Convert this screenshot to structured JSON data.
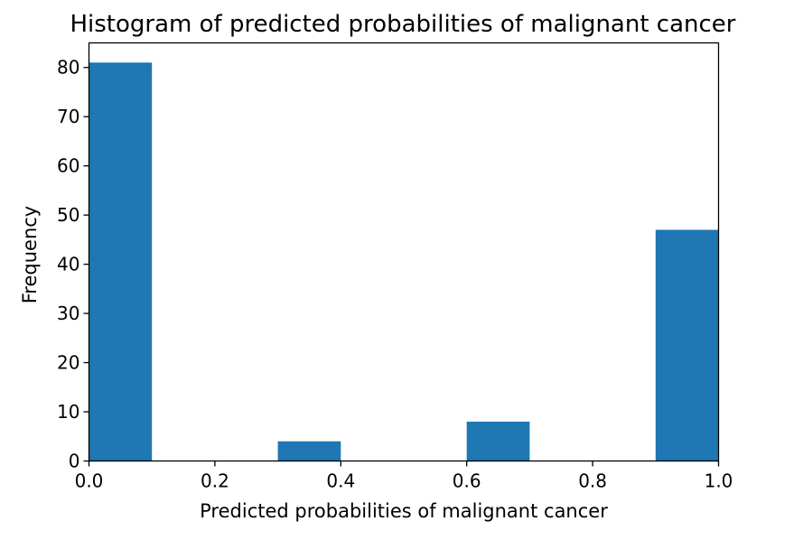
{
  "chart_data": {
    "type": "bar",
    "title": "Histogram of predicted probabilities of malignant cancer",
    "xlabel": "Predicted probabilities of malignant cancer",
    "ylabel": "Frequency",
    "bin_edges": [
      0.0,
      0.1,
      0.2,
      0.3,
      0.4,
      0.5,
      0.6,
      0.7,
      0.8,
      0.9,
      1.0
    ],
    "values": [
      81,
      0,
      0,
      4,
      0,
      0,
      8,
      0,
      0,
      47
    ],
    "xlim": [
      0.0,
      1.0
    ],
    "ylim": [
      0,
      85
    ],
    "xticks": [
      "0.0",
      "0.2",
      "0.4",
      "0.6",
      "0.8",
      "1.0"
    ],
    "yticks": [
      "0",
      "10",
      "20",
      "30",
      "40",
      "50",
      "60",
      "70",
      "80"
    ],
    "grid": false,
    "bar_color": "#1f77b4"
  }
}
